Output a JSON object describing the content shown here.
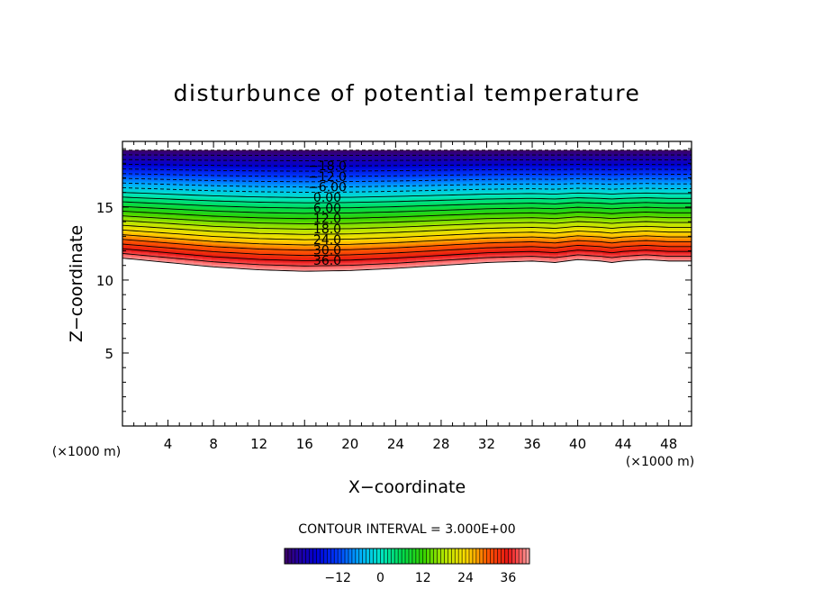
{
  "chart_data": {
    "type": "heatmap",
    "title": "disturbunce of potential temperature",
    "xlabel": "X−coordinate",
    "ylabel": "Z−coordinate",
    "x_unit": "(×1000 m)",
    "y_unit": "(×1000 m)",
    "xlim": [
      0,
      50
    ],
    "ylim": [
      0,
      19.5
    ],
    "x_ticks": [
      4,
      8,
      12,
      16,
      20,
      24,
      28,
      32,
      36,
      40,
      44,
      48
    ],
    "y_ticks": [
      5,
      10,
      15
    ],
    "x_tick_labels": [
      "4",
      "8",
      "12",
      "16",
      "20",
      "24",
      "28",
      "32",
      "36",
      "40",
      "44",
      "48"
    ],
    "y_tick_labels": [
      "5",
      "10",
      "15"
    ],
    "contour_interval_label": "CONTOUR INTERVAL = 3.000E+00",
    "contour_interval": 3.0,
    "contour_labels": [
      {
        "text": "−18.0",
        "value": -18
      },
      {
        "text": "−12.0",
        "value": -12
      },
      {
        "text": "−6.00",
        "value": -6
      },
      {
        "text": "0.00",
        "value": 0
      },
      {
        "text": "6.00",
        "value": 6
      },
      {
        "text": "12.0",
        "value": 12
      },
      {
        "text": "18.0",
        "value": 18
      },
      {
        "text": "24.0",
        "value": 24
      },
      {
        "text": "30.0",
        "value": 30
      },
      {
        "text": "36.0",
        "value": 36
      }
    ],
    "contour_label_x": 18,
    "colorbar": {
      "range": [
        -27,
        42
      ],
      "tick_values": [
        -12,
        0,
        12,
        24,
        36
      ],
      "tick_labels": [
        "−12",
        "0",
        "12",
        "24",
        "36"
      ]
    },
    "field": {
      "bottom_boundary_x": [
        0,
        4,
        8,
        12,
        16,
        20,
        24,
        28,
        32,
        36,
        38,
        40,
        42,
        43,
        44,
        46,
        48,
        50
      ],
      "bottom_boundary_z": [
        11.5,
        11.2,
        10.9,
        10.7,
        10.6,
        10.65,
        10.8,
        11.0,
        11.2,
        11.3,
        11.2,
        11.4,
        11.3,
        11.2,
        11.3,
        11.4,
        11.3,
        11.3
      ],
      "top_boundary_z": 18.9,
      "min_value": -27,
      "max_value": 42
    },
    "grid": false
  }
}
